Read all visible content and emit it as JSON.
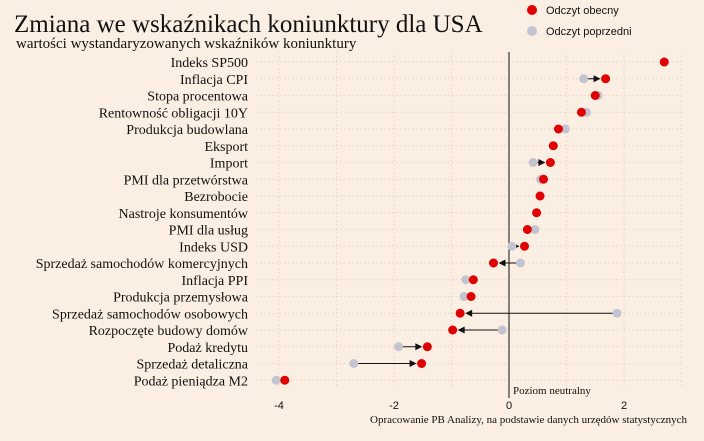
{
  "chart_data": {
    "type": "scatter",
    "title": "Zmiana we wskaźnikach koniunktury dla USA",
    "subtitle": "wartości wystandaryzowanych wskaźników koniunktury",
    "categories": [
      "Indeks SP500",
      "Inflacja CPI",
      "Stopa procentowa",
      "Rentowność obligacji 10Y",
      "Produkcja budowlana",
      "Eksport",
      "Import",
      "PMI dla przetwórstwa",
      "Bezrobocie",
      "Nastroje konsumentów",
      "PMI dla usług",
      "Indeks USD",
      "Sprzedaż samochodów komercyjnych",
      "Inflacja PPI",
      "Produkcja przemysłowa",
      "Sprzedaż samochodów osobowych",
      "Rozpoczęte budowy domów",
      "Podaż kredytu",
      "Sprzedaż detaliczna",
      "Podaż pieniądza M2"
    ],
    "series": [
      {
        "name": "Odczyt obecny",
        "color": "#e00000",
        "values": [
          2.7,
          1.68,
          1.5,
          1.26,
          0.86,
          0.77,
          0.72,
          0.6,
          0.54,
          0.48,
          0.32,
          0.27,
          -0.27,
          -0.62,
          -0.66,
          -0.85,
          -0.98,
          -1.42,
          -1.52,
          -3.9
        ]
      },
      {
        "name": "Odczyt poprzedni",
        "color": "#c4c4d0",
        "values": [
          2.7,
          1.3,
          1.55,
          1.35,
          0.98,
          0.77,
          0.42,
          0.55,
          0.54,
          0.48,
          0.45,
          0.05,
          0.2,
          -0.75,
          -0.78,
          1.88,
          -0.12,
          -1.92,
          -2.7,
          -4.05
        ]
      }
    ],
    "arrows": [
      1,
      6,
      11,
      12,
      15,
      16,
      17,
      18
    ],
    "xlim": [
      -4.4,
      3.0
    ],
    "xticks": [
      -4,
      -2,
      0,
      2
    ],
    "grid": true,
    "legend_position": "top-right",
    "reference_line": {
      "x": 0,
      "label": "Poziom neutralny"
    },
    "source": "Opracowanie PB Analizy, na podstawie danych urzędów statystycznych"
  }
}
